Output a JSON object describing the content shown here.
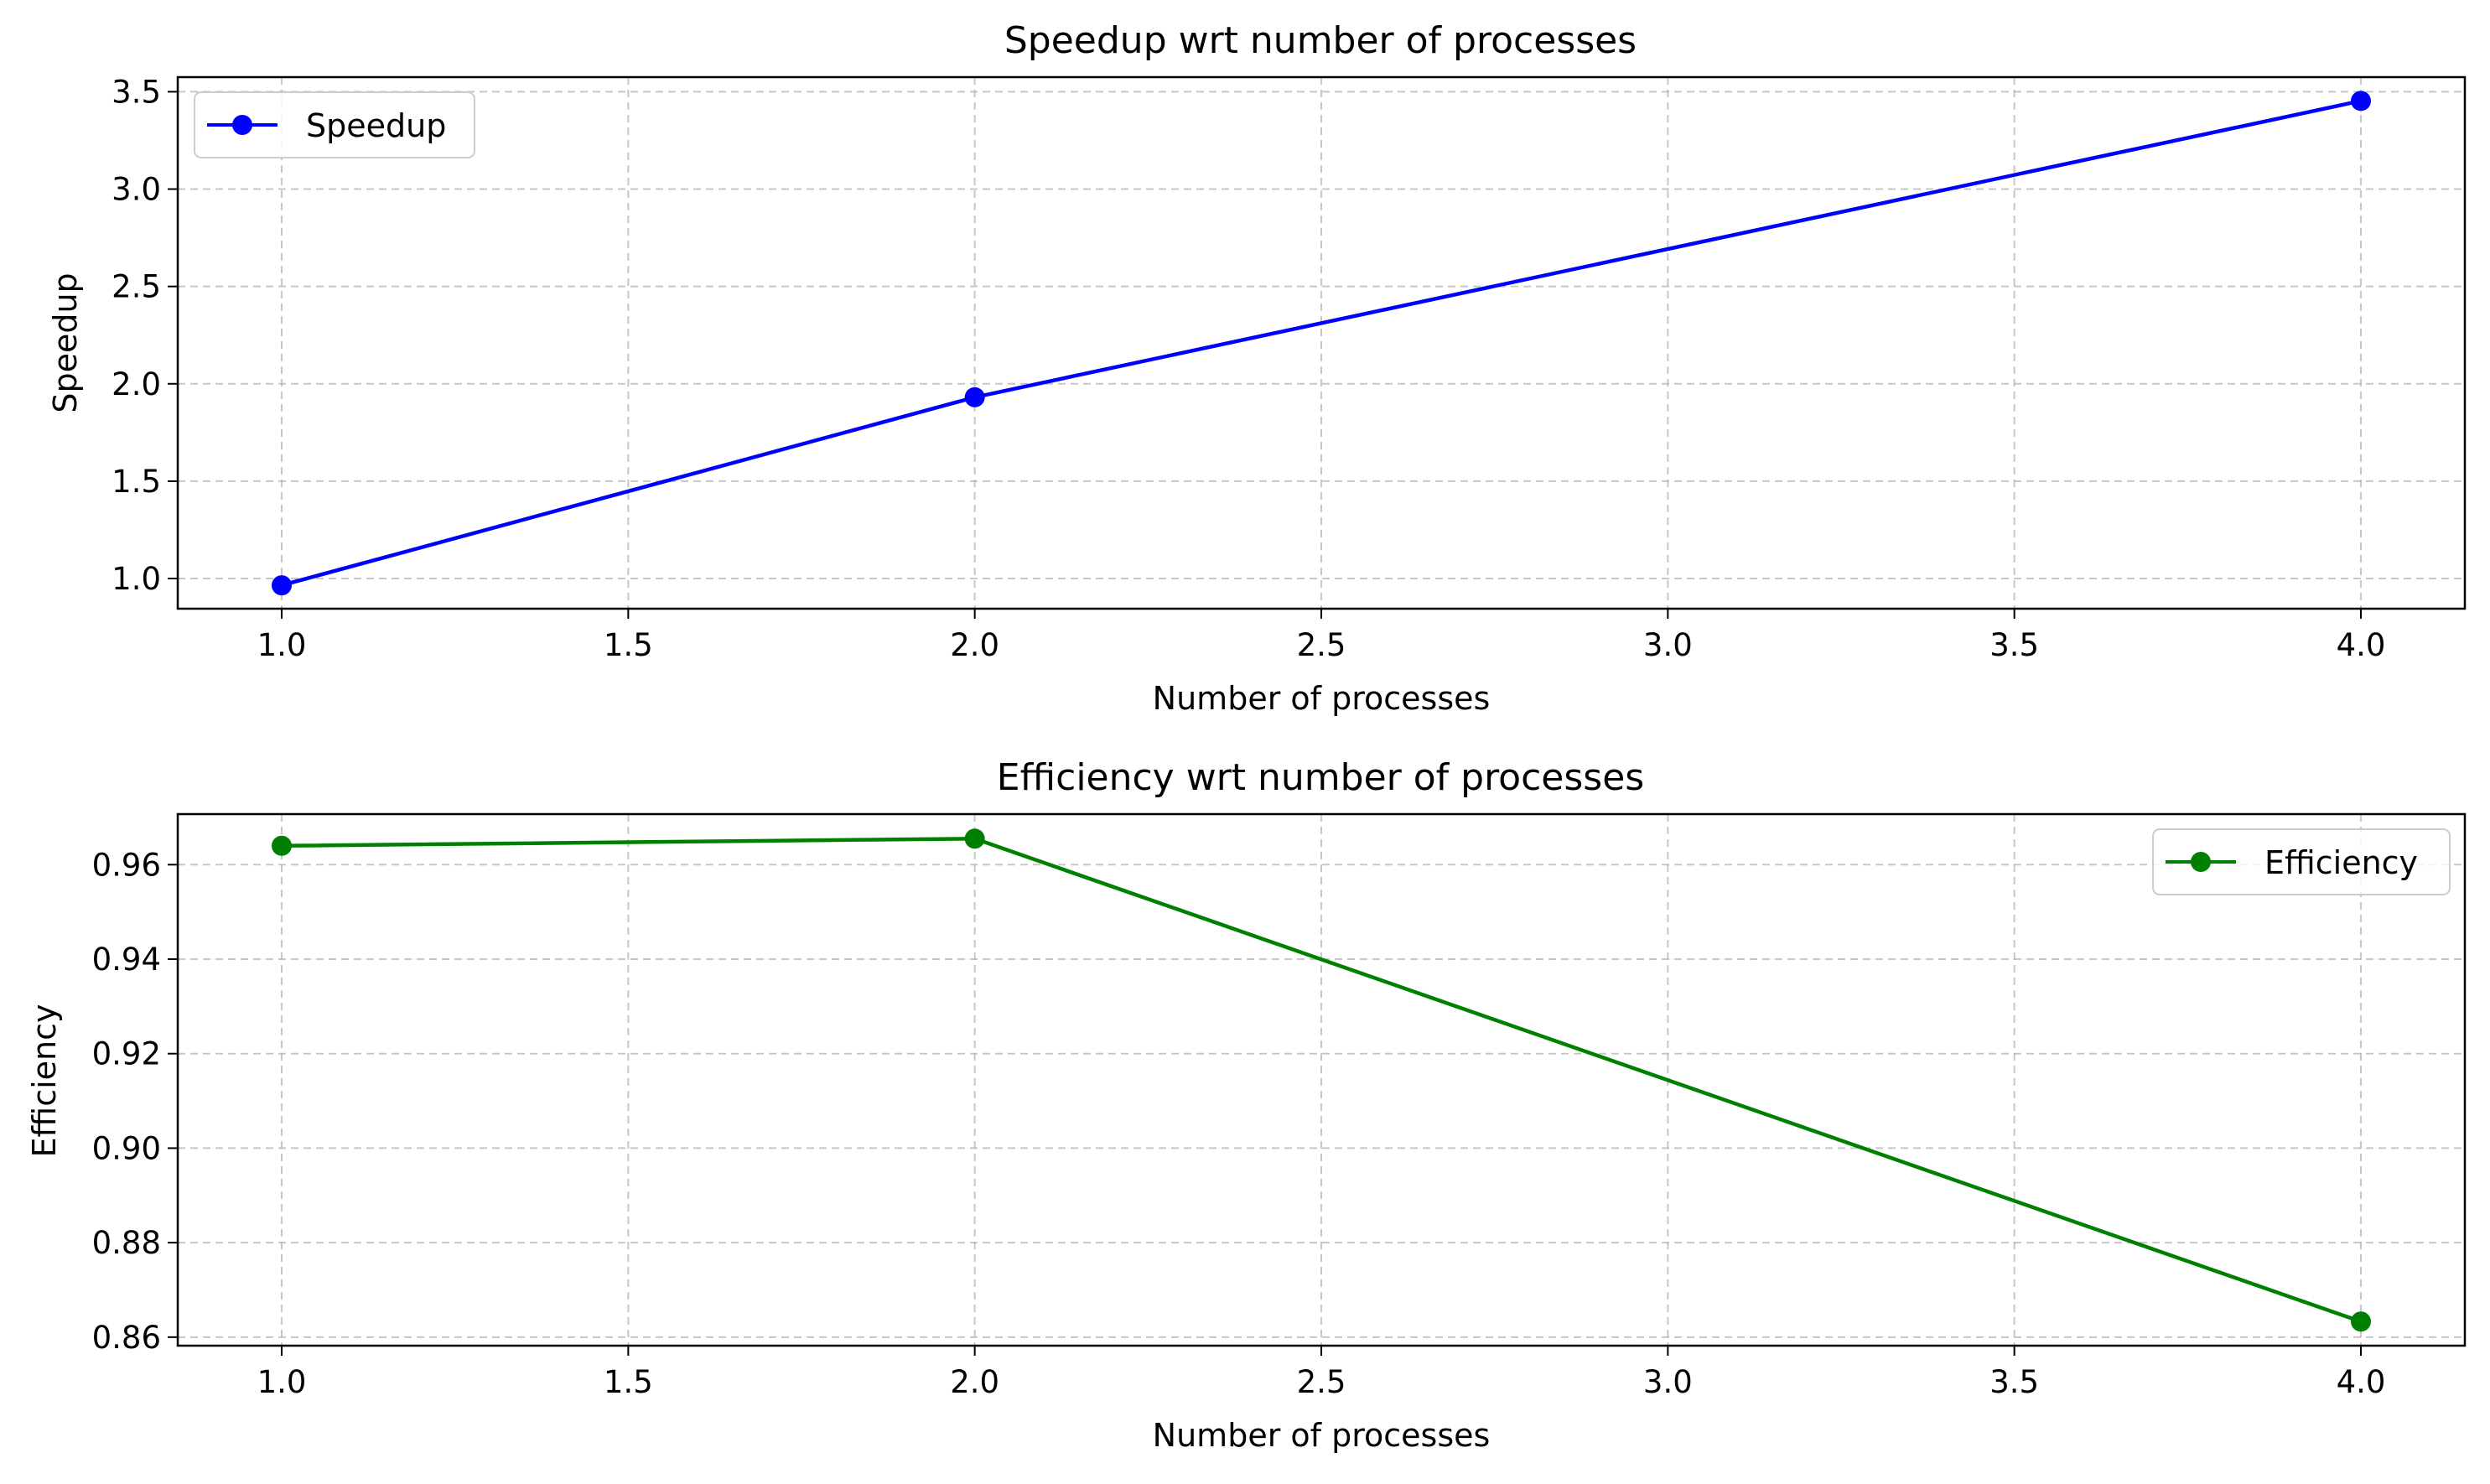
{
  "chart_data": [
    {
      "type": "line",
      "title": "Speedup wrt number of processes",
      "xlabel": "Number of processes",
      "ylabel": "Speedup",
      "x": [
        1.0,
        2.0,
        4.0
      ],
      "series": [
        {
          "name": "Speedup",
          "values": [
            0.965,
            1.931,
            3.453
          ],
          "color": "#0000ff",
          "marker": "circle"
        }
      ],
      "xlim": [
        0.85,
        4.15
      ],
      "ylim": [
        0.845,
        3.575
      ],
      "xticks": [
        1.0,
        1.5,
        2.0,
        2.5,
        3.0,
        3.5,
        4.0
      ],
      "xtick_labels": [
        "1.0",
        "1.5",
        "2.0",
        "2.5",
        "3.0",
        "3.5",
        "4.0"
      ],
      "yticks": [
        1.0,
        1.5,
        2.0,
        2.5,
        3.0,
        3.5
      ],
      "ytick_labels": [
        "1.0",
        "1.5",
        "2.0",
        "2.5",
        "3.0",
        "3.5"
      ],
      "grid": true,
      "grid_style": "dashed",
      "legend_position": "top-left"
    },
    {
      "type": "line",
      "title": "Efficiency wrt number of processes",
      "xlabel": "Number of processes",
      "ylabel": "Efficiency",
      "x": [
        1.0,
        2.0,
        4.0
      ],
      "series": [
        {
          "name": "Efficiency",
          "values": [
            0.964,
            0.9655,
            0.8633
          ],
          "color": "#008000",
          "marker": "circle"
        }
      ],
      "xlim": [
        0.85,
        4.15
      ],
      "ylim": [
        0.8582,
        0.9707
      ],
      "xticks": [
        1.0,
        1.5,
        2.0,
        2.5,
        3.0,
        3.5,
        4.0
      ],
      "xtick_labels": [
        "1.0",
        "1.5",
        "2.0",
        "2.5",
        "3.0",
        "3.5",
        "4.0"
      ],
      "yticks": [
        0.86,
        0.88,
        0.9,
        0.92,
        0.94,
        0.96
      ],
      "ytick_labels": [
        "0.86",
        "0.88",
        "0.90",
        "0.92",
        "0.94",
        "0.96"
      ],
      "grid": true,
      "grid_style": "dashed",
      "legend_position": "top-right"
    }
  ]
}
